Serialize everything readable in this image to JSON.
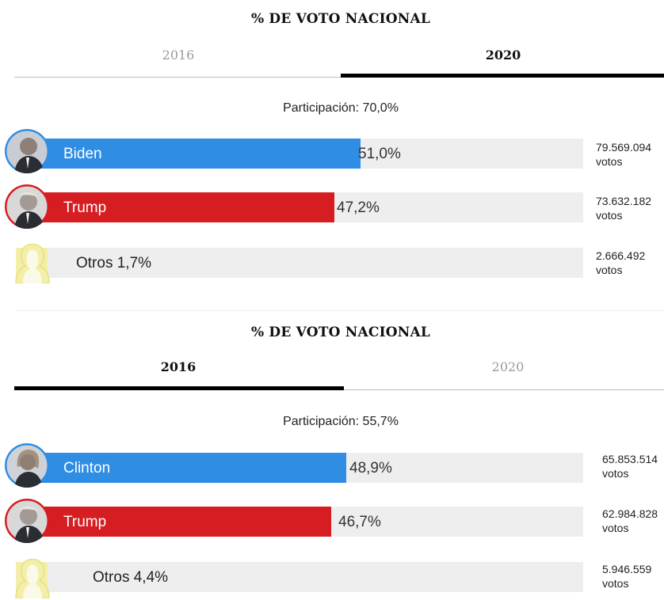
{
  "panels": [
    {
      "title": "% DE VOTO NACIONAL",
      "tabs": [
        {
          "label": "2016",
          "active": false
        },
        {
          "label": "2020",
          "active": true
        }
      ],
      "participation": "Participación: 70,0%",
      "rows": [
        {
          "name": "Biden",
          "pct_label": "51,0%",
          "share": 51.0,
          "color": "#2f8de4",
          "votes": "79.569.094",
          "unit": "votos",
          "icon": "biden-photo-icon"
        },
        {
          "name": "Trump",
          "pct_label": "47,2%",
          "share": 47.2,
          "color": "#d51d22",
          "votes": "73.632.182",
          "unit": "votos",
          "icon": "trump-photo-icon"
        },
        {
          "name": "Otros",
          "pct_label": "1,7%",
          "share": 1.7,
          "color": "#f3efa8",
          "votes": "2.666.492",
          "unit": "votos",
          "icon": "generic-person-icon"
        }
      ]
    },
    {
      "title": "% DE VOTO NACIONAL",
      "tabs": [
        {
          "label": "2016",
          "active": true
        },
        {
          "label": "2020",
          "active": false
        }
      ],
      "participation": "Participación: 55,7%",
      "rows": [
        {
          "name": "Clinton",
          "pct_label": "48,9%",
          "share": 48.9,
          "color": "#2f8de4",
          "votes": "65.853.514",
          "unit": "votos",
          "icon": "clinton-photo-icon"
        },
        {
          "name": "Trump",
          "pct_label": "46,7%",
          "share": 46.7,
          "color": "#d51d22",
          "votes": "62.984.828",
          "unit": "votos",
          "icon": "trump-photo-icon"
        },
        {
          "name": "Otros",
          "pct_label": "4,4%",
          "share": 4.4,
          "color": "#f3efa8",
          "votes": "5.946.559",
          "unit": "votos",
          "icon": "generic-person-icon"
        }
      ]
    }
  ],
  "chart_data": [
    {
      "type": "bar",
      "title": "% DE VOTO NACIONAL",
      "subtitle": "Participación: 70,0%",
      "categories": [
        "Biden",
        "Trump",
        "Otros"
      ],
      "values": [
        51.0,
        47.2,
        1.7
      ],
      "votes": [
        79569094,
        73632182,
        2666492
      ],
      "colors": [
        "#2f8de4",
        "#d51d22",
        "#f3efa8"
      ],
      "selected_tab": "2020",
      "orientation": "horizontal"
    },
    {
      "type": "bar",
      "title": "% DE VOTO NACIONAL",
      "subtitle": "Participación: 55,7%",
      "categories": [
        "Clinton",
        "Trump",
        "Otros"
      ],
      "values": [
        48.9,
        46.7,
        4.4
      ],
      "votes": [
        65853514,
        62984828,
        5946559
      ],
      "colors": [
        "#2f8de4",
        "#d51d22",
        "#f3efa8"
      ],
      "selected_tab": "2016",
      "orientation": "horizontal"
    }
  ]
}
